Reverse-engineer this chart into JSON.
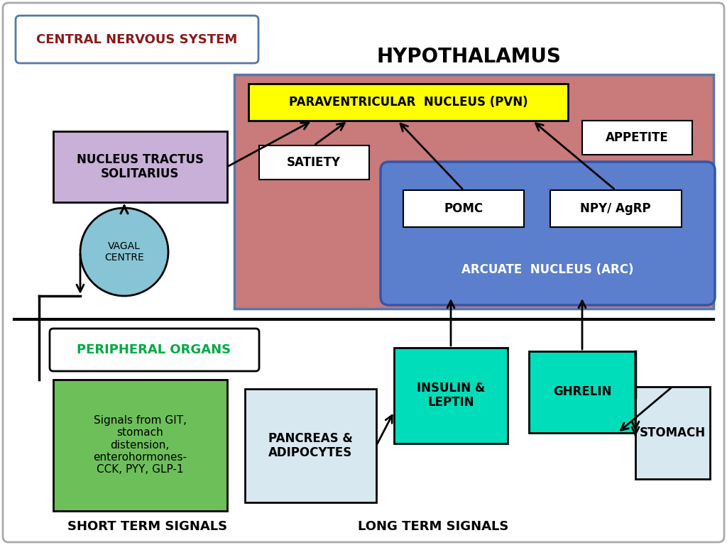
{
  "title": "CENTRAL NERVOUS SYSTEM",
  "hypothalamus_label": "HYPOTHALAMUS",
  "pvn_label": "PARAVENTRICULAR  NUCLEUS (PVN)",
  "nts_label": "NUCLEUS TRACTUS\nSOLITARIUS",
  "vagal_label": "VAGAL\nCENTRE",
  "satiety_label": "SATIETY",
  "appetite_label": "APPETITE",
  "pomc_label": "POMC",
  "npy_label": "NPY/ AgRP",
  "arc_label": "ARCUATE  NUCLEUS (ARC)",
  "peripheral_label": "PERIPHERAL ORGANS",
  "signals_label": "Signals from GIT,\nstomach\ndistension,\nenterohormones-\nCCK, PYY, GLP-1",
  "pancreas_label": "PANCREAS &\nADIPOCYTES",
  "insulin_label": "INSULIN &\nLEPTIN",
  "ghrelin_label": "GHRELIN",
  "stomach_label": "STOMACH",
  "short_term_label": "SHORT TERM SIGNALS",
  "long_term_label": "LONG TERM SIGNALS",
  "colors": {
    "background": "#ffffff",
    "hypothalamus_bg": "#c97a7a",
    "arc_bg": "#5b7fcc",
    "pvn_bg": "#ffff00",
    "nts_bg": "#c8b0d8",
    "vagal_bg": "#87c5d6",
    "signals_bg": "#6dbf5a",
    "pancreas_bg": "#d8e8f0",
    "insulin_bg": "#00ddbb",
    "ghrelin_bg": "#00ddbb",
    "stomach_bg": "#d8e8f0",
    "cns_title_color": "#8b1a1a",
    "peripheral_text_color": "#00aa44",
    "cns_border": "#5577aa"
  }
}
